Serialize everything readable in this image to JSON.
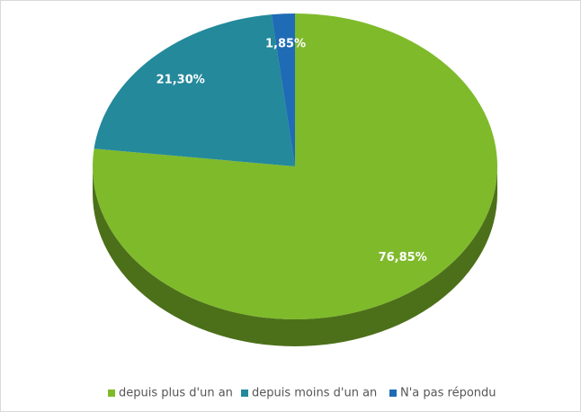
{
  "chart_data": {
    "type": "pie",
    "categories": [
      "depuis plus d'un an",
      "depuis moins d'un an",
      "N'a pas répondu"
    ],
    "values": [
      76.85,
      21.3,
      1.85
    ],
    "value_labels": [
      "76,85%",
      "21,30%",
      "1,85%"
    ],
    "colors": [
      "#7fba2b",
      "#23899b",
      "#1f6bb5"
    ],
    "legend": "bottom"
  }
}
